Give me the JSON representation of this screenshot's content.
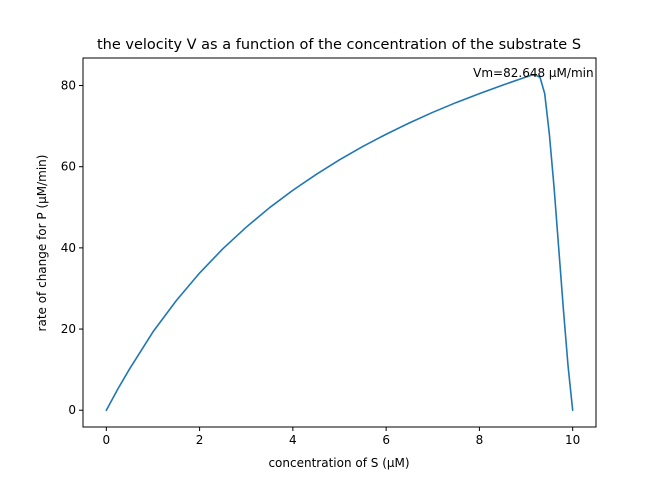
{
  "chart_data": {
    "type": "line",
    "title": "the velocity V as a function of the concentration of the substrate S",
    "xlabel": "concentration of S (µM)",
    "ylabel": "rate of change for P (µM/min)",
    "xlim": [
      -0.5,
      10.5
    ],
    "ylim": [
      -4.13,
      86.78
    ],
    "xticks": [
      0,
      2,
      4,
      6,
      8,
      10
    ],
    "yticks": [
      0,
      20,
      40,
      60,
      80
    ],
    "grid": false,
    "legend": "none",
    "annotation": {
      "text": "Vm=82.648 µM/min",
      "x": 9.2,
      "y": 82.648
    },
    "series": [
      {
        "color": "#1f77b4",
        "x": [
          0,
          0.25,
          0.5,
          1.0,
          1.5,
          2.0,
          2.5,
          3.0,
          3.5,
          4.0,
          4.5,
          5.0,
          5.5,
          6.0,
          6.5,
          7.0,
          7.5,
          8.0,
          8.5,
          9.0,
          9.1,
          9.2,
          9.3,
          9.4,
          9.5,
          9.6,
          9.7,
          9.8,
          9.9,
          10.0
        ],
        "y": [
          0,
          5.3,
          10.2,
          19.3,
          27.0,
          33.8,
          39.8,
          45.1,
          49.9,
          54.2,
          58.1,
          61.7,
          65.0,
          68.0,
          70.8,
          73.4,
          75.8,
          78.0,
          80.1,
          82.1,
          82.5,
          82.6,
          82.0,
          78.0,
          68.0,
          55.0,
          40.0,
          25.0,
          11.0,
          0
        ]
      }
    ]
  }
}
